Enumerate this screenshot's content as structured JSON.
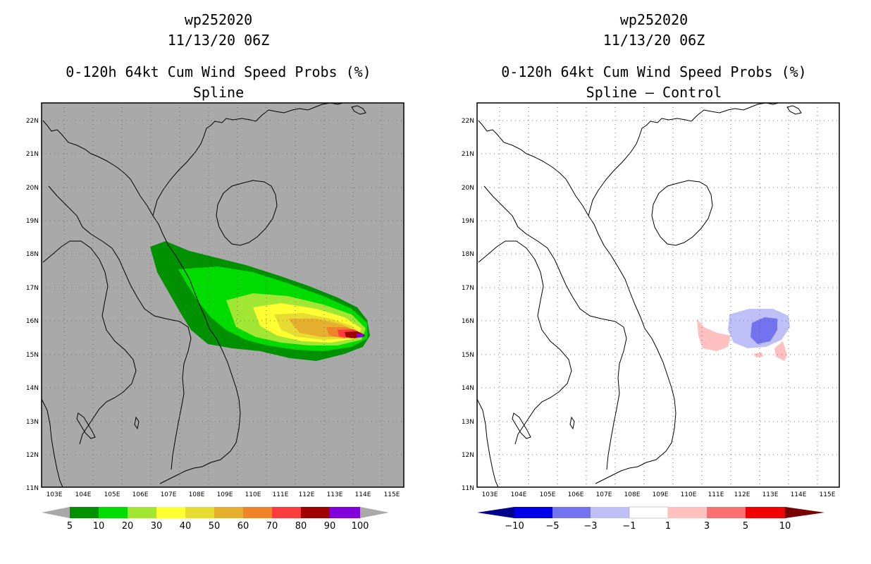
{
  "panels": [
    {
      "storm_id": "wp252020",
      "datetime": "11/13/20 06Z",
      "product": "0-120h 64kt Cum Wind Speed Probs (%)",
      "subtitle": "Spline",
      "background_color": "#a9a9a9",
      "colorbar": {
        "labels": [
          "5",
          "10",
          "20",
          "30",
          "40",
          "50",
          "60",
          "70",
          "80",
          "90",
          "100"
        ],
        "colors": [
          "#009100",
          "#00dc00",
          "#a0e632",
          "#ffff32",
          "#e6dc32",
          "#e6af2d",
          "#f08228",
          "#fa3c3c",
          "#a00000",
          "#8200dc"
        ]
      }
    },
    {
      "storm_id": "wp252020",
      "datetime": "11/13/20 06Z",
      "product": "0-120h 64kt Cum Wind Speed Probs (%)",
      "subtitle": "Spline – Control",
      "background_color": "#ffffff",
      "colorbar": {
        "labels": [
          "−10",
          "−5",
          "−3",
          "−1",
          "1",
          "3",
          "5",
          "10"
        ],
        "colors": [
          "#0000e6",
          "#7373f0",
          "#c0c0f8",
          "#ffffff",
          "#ffc0c0",
          "#f87070",
          "#f00000"
        ],
        "end_colors": [
          "#00008c",
          "#780000"
        ]
      }
    }
  ],
  "lat_labels": [
    "22N",
    "21N",
    "20N",
    "19N",
    "18N",
    "17N",
    "16N",
    "15N",
    "14N",
    "13N",
    "12N",
    "11N"
  ],
  "lon_labels": [
    "103E",
    "104E",
    "105E",
    "106E",
    "107E",
    "108E",
    "109E",
    "110E",
    "111E",
    "112E",
    "113E",
    "114E",
    "115E"
  ]
}
